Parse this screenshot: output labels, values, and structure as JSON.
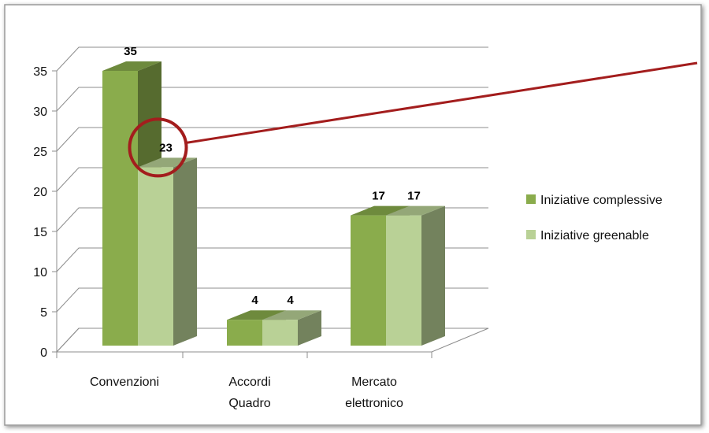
{
  "chart_data": {
    "type": "bar",
    "categories": [
      "Convenzioni",
      "Accordi Quadro",
      "Mercato elettronico"
    ],
    "category_lines": [
      [
        "Convenzioni"
      ],
      [
        "Accordi",
        "Quadro"
      ],
      [
        "Mercato",
        "elettronico"
      ]
    ],
    "series": [
      {
        "name": "Iniziative complessive",
        "values": [
          35,
          4,
          17
        ],
        "color": "#8aac4c"
      },
      {
        "name": "Iniziative greenable",
        "values": [
          23,
          4,
          17
        ],
        "color": "#b9d196"
      }
    ],
    "data_labels": [
      [
        "35",
        "4",
        "17"
      ],
      [
        "23",
        "4",
        "17"
      ]
    ],
    "y_ticks": [
      "0",
      "5",
      "10",
      "15",
      "20",
      "25",
      "30",
      "35"
    ],
    "ylim": [
      0,
      35
    ],
    "grid": true,
    "legend_position": "right",
    "style": "3d-clustered-column",
    "highlight": {
      "series": 1,
      "category": 0,
      "color": "#a31d1d"
    }
  }
}
